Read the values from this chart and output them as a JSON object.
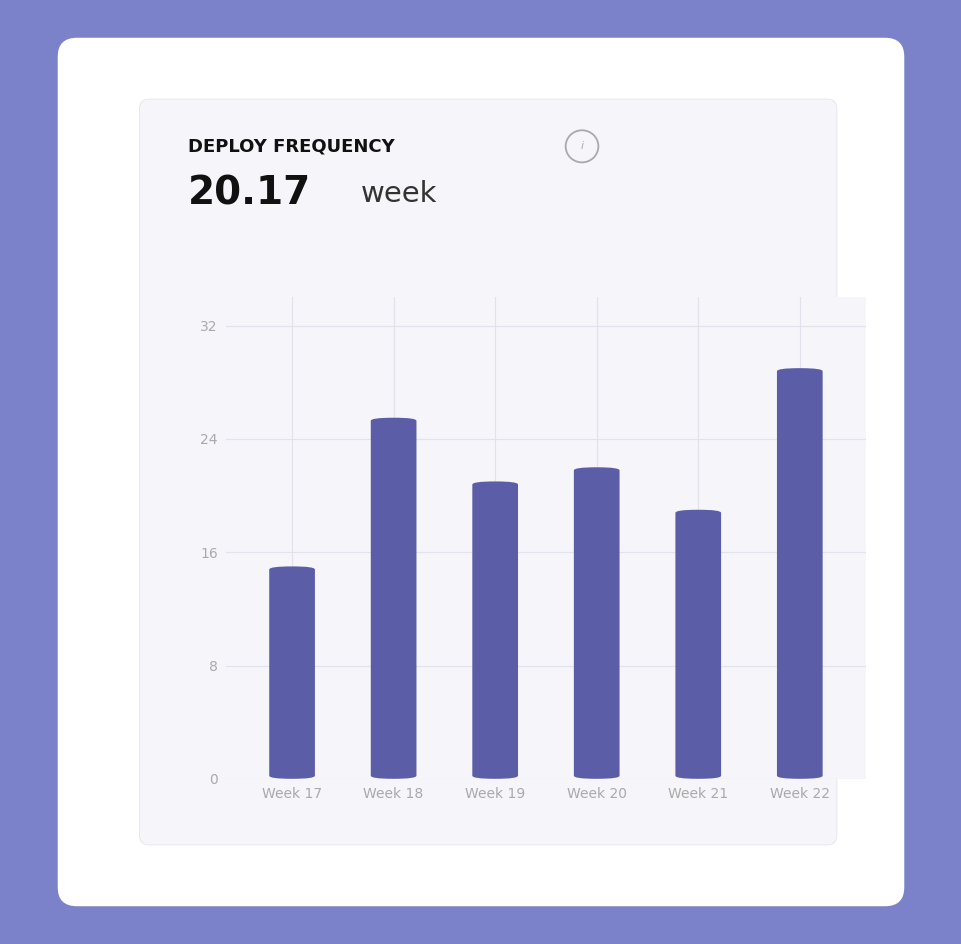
{
  "title_label": "DEPLOY FREQUENCY",
  "subtitle_value": "20.17",
  "subtitle_unit": "week",
  "categories": [
    "Week 17",
    "Week 18",
    "Week 19",
    "Week 20",
    "Week 21",
    "Week 22"
  ],
  "values": [
    15,
    25.5,
    21,
    22,
    19,
    29
  ],
  "bar_color": "#5b5ea6",
  "bar_width": 0.45,
  "ylim": [
    0,
    34
  ],
  "yticks": [
    0,
    8,
    16,
    24,
    32
  ],
  "grid_color": "#e2e2ec",
  "background_outer": "#7b82c9",
  "background_card": "#ffffff",
  "background_inner": "#f5f5fa",
  "axis_label_color": "#aaaaaa",
  "title_color": "#111111",
  "value_color": "#111111",
  "unit_color": "#333333",
  "tick_color": "#aaaaaa"
}
